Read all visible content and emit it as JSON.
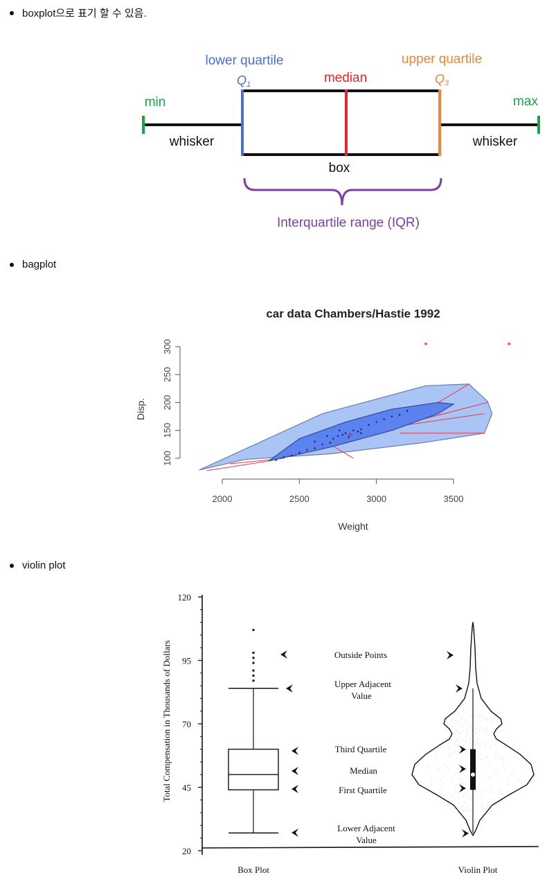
{
  "items": [
    {
      "label": "boxplot으로 표기 할 수 있음."
    },
    {
      "label": "bagplot"
    },
    {
      "label": "violin plot"
    }
  ],
  "boxplot_diagram": {
    "min": "min",
    "max": "max",
    "lower_quartile": "lower quartile",
    "q1": "Q",
    "q1_sub": "1",
    "median": "median",
    "upper_quartile": "upper quartile",
    "q3": "Q",
    "q3_sub": "3",
    "whisker_left": "whisker",
    "whisker_right": "whisker",
    "box": "box",
    "iqr": "Interquartile range (IQR)",
    "colors": {
      "min_max": "#1aa34a",
      "q1": "#4a72c4",
      "median": "#e0282e",
      "q3": "#e8873a",
      "iqr": "#7a3fa0"
    }
  },
  "chart_data": [
    {
      "type": "scatter",
      "title": "car data Chambers/Hastie 1992",
      "xlabel": "Weight",
      "ylabel": "Disp.",
      "xlim": [
        1850,
        3800
      ],
      "ylim": [
        75,
        305
      ],
      "xticks": [
        "2000",
        "2500",
        "3000",
        "3500"
      ],
      "yticks": [
        "100",
        "150",
        "200",
        "250",
        "300"
      ],
      "outer_hull": [
        [
          1850,
          79
        ],
        [
          2150,
          98
        ],
        [
          2700,
          108
        ],
        [
          3300,
          128
        ],
        [
          3700,
          145
        ],
        [
          3750,
          180
        ],
        [
          3720,
          202
        ],
        [
          3600,
          233
        ],
        [
          3320,
          230
        ],
        [
          2650,
          180
        ]
      ],
      "inner_bag": [
        [
          2300,
          95
        ],
        [
          2700,
          120
        ],
        [
          3100,
          150
        ],
        [
          3400,
          180
        ],
        [
          3500,
          197
        ],
        [
          3400,
          200
        ],
        [
          3100,
          188
        ],
        [
          2800,
          165
        ],
        [
          2500,
          135
        ]
      ],
      "points": [
        [
          2350,
          97
        ],
        [
          2400,
          102
        ],
        [
          2450,
          105
        ],
        [
          2500,
          110
        ],
        [
          2550,
          115
        ],
        [
          2600,
          118
        ],
        [
          2650,
          125
        ],
        [
          2700,
          128
        ],
        [
          2720,
          135
        ],
        [
          2750,
          140
        ],
        [
          2780,
          142
        ],
        [
          2800,
          145
        ],
        [
          2820,
          138
        ],
        [
          2850,
          150
        ],
        [
          2880,
          148
        ],
        [
          2900,
          152
        ],
        [
          2950,
          160
        ],
        [
          3000,
          165
        ],
        [
          3050,
          170
        ],
        [
          3100,
          175
        ],
        [
          3150,
          178
        ],
        [
          3200,
          185
        ],
        [
          2600,
          130
        ],
        [
          2680,
          140
        ],
        [
          2760,
          150
        ],
        [
          2900,
          145
        ]
      ],
      "outliers": [
        [
          3320,
          305
        ],
        [
          3860,
          305
        ]
      ],
      "median": [
        2830,
        142
      ]
    },
    {
      "type": "box",
      "ylabel": "Total Compensation in Thousands of Dollars",
      "yticks": [
        "20",
        "45",
        "70",
        "95",
        "120"
      ],
      "ylim": [
        20,
        120
      ],
      "categories": [
        "Box Plot",
        "Violin Plot"
      ],
      "box": {
        "q1": 44,
        "median": 50,
        "q3": 60,
        "lower_adjacent": 27,
        "upper_adjacent": 84,
        "outside_points": [
          87,
          89,
          91,
          94,
          96,
          98,
          107
        ]
      },
      "annotations": [
        "Outside Points",
        "Upper Adjacent",
        "Value",
        "Third Quartile",
        "Median",
        "First Quartile",
        "Lower Adjacent",
        "Value"
      ]
    }
  ]
}
